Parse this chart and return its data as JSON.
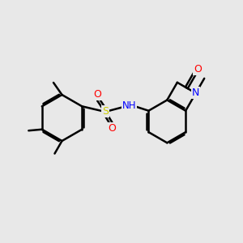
{
  "background_color": "#e8e8e8",
  "atom_colors": {
    "N": "#0000ff",
    "O": "#ff0000",
    "S": "#cccc00",
    "C": "#000000",
    "H": "#888888"
  },
  "bond_color": "#000000",
  "line_width": 1.8,
  "figsize": [
    3.0,
    3.0
  ],
  "dpi": 100,
  "xlim": [
    0,
    10
  ],
  "ylim": [
    0,
    10
  ]
}
